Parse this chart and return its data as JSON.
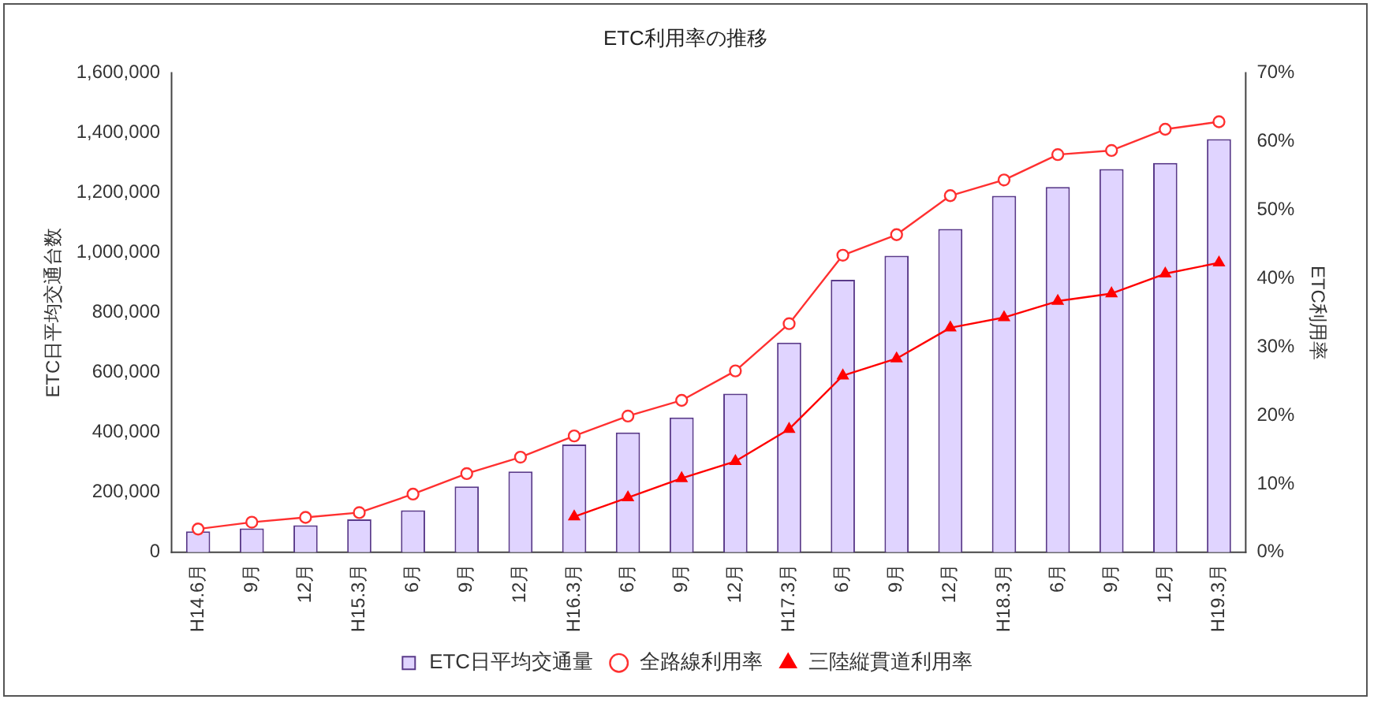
{
  "chart_data": {
    "type": "bar",
    "title": "ETC利用率の推移",
    "ylabel": "ETC日平均交通台数",
    "y2label": "ETC利用率",
    "categories": [
      "H14.6月",
      "9月",
      "12月",
      "H15.3月",
      "6月",
      "9月",
      "12月",
      "H16.3月",
      "6月",
      "9月",
      "12月",
      "H17.3月",
      "6月",
      "9月",
      "12月",
      "H18.3月",
      "6月",
      "9月",
      "12月",
      "H19.3月"
    ],
    "series": [
      {
        "name": "ETC日平均交通量",
        "color": "#e0d4ff",
        "values": [
          70000,
          80000,
          90000,
          110000,
          140000,
          220000,
          270000,
          360000,
          400000,
          450000,
          530000,
          700000,
          910000,
          990000,
          1080000,
          1190000,
          1220000,
          1280000,
          1300000,
          1380000
        ]
      },
      {
        "name": "全路線利用率",
        "type": "line",
        "axis": "y2",
        "color": "#ff3030",
        "marker": "circle",
        "values": [
          3.4,
          4.4,
          5.1,
          5.8,
          8.5,
          11.5,
          13.9,
          17.0,
          19.9,
          22.2,
          26.5,
          33.4,
          43.4,
          46.4,
          52.1,
          54.4,
          58.1,
          58.7,
          61.8,
          62.9
        ]
      },
      {
        "name": "三陸縦貫道利用率",
        "type": "line",
        "axis": "y2",
        "color": "#ff0000",
        "marker": "triangle",
        "values": [
          null,
          null,
          null,
          null,
          null,
          null,
          null,
          5.2,
          8.0,
          10.8,
          13.3,
          18.0,
          25.8,
          28.3,
          32.8,
          34.3,
          36.7,
          37.8,
          40.7,
          42.3
        ]
      }
    ],
    "ylim": [
      0,
      1600000
    ],
    "yticks": [
      {
        "value": 0,
        "label": "0"
      },
      {
        "value": 200000,
        "label": "200,000"
      },
      {
        "value": 400000,
        "label": "400,000"
      },
      {
        "value": 600000,
        "label": "600,000"
      },
      {
        "value": 800000,
        "label": "800,000"
      },
      {
        "value": 1000000,
        "label": "1,000,000"
      },
      {
        "value": 1200000,
        "label": "1,200,000"
      },
      {
        "value": 1400000,
        "label": "1,400,000"
      },
      {
        "value": 1600000,
        "label": "1,600,000"
      }
    ],
    "y2lim": [
      0,
      70
    ],
    "y2ticks": [
      {
        "value": 0,
        "label": "0%"
      },
      {
        "value": 10,
        "label": "10%"
      },
      {
        "value": 20,
        "label": "20%"
      },
      {
        "value": 30,
        "label": "30%"
      },
      {
        "value": 40,
        "label": "40%"
      },
      {
        "value": 50,
        "label": "50%"
      },
      {
        "value": 60,
        "label": "60%"
      },
      {
        "value": 70,
        "label": "70%"
      }
    ],
    "grid": false,
    "legend": "bottom"
  }
}
